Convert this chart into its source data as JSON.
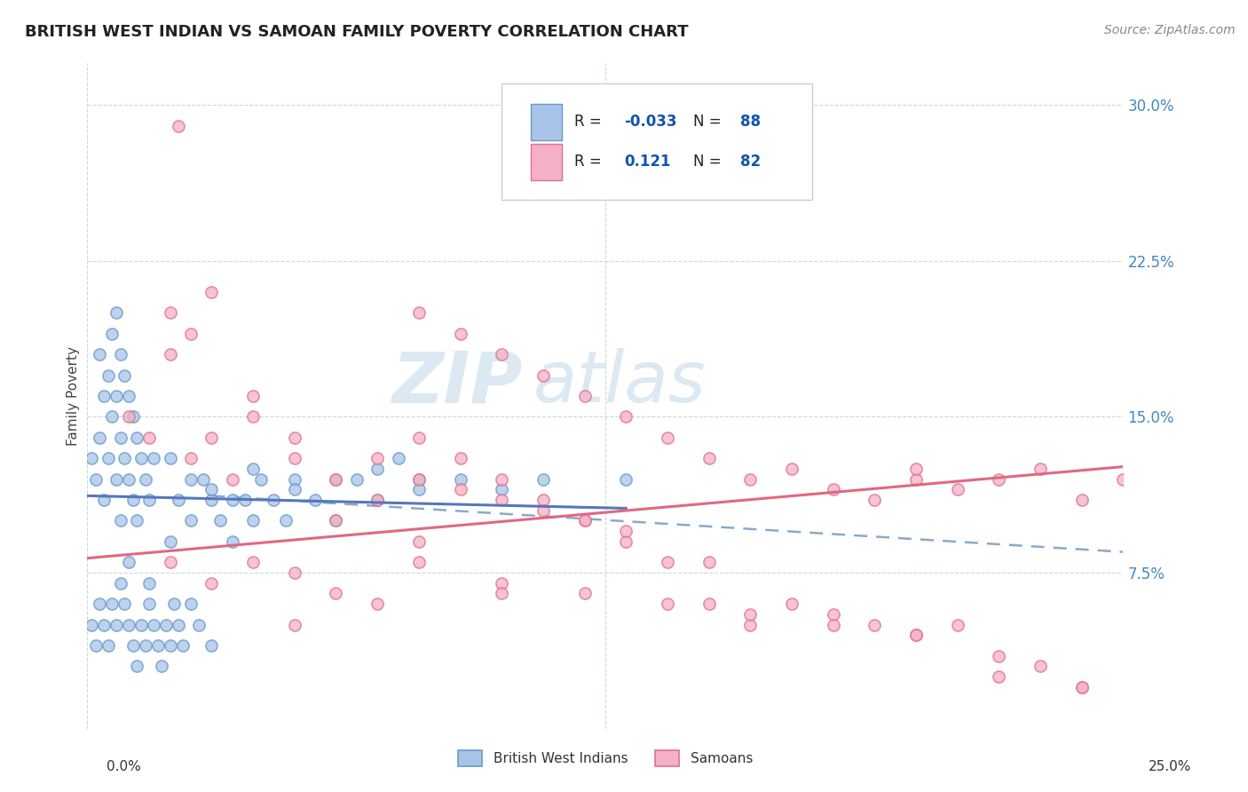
{
  "title": "BRITISH WEST INDIAN VS SAMOAN FAMILY POVERTY CORRELATION CHART",
  "source": "Source: ZipAtlas.com",
  "ylabel": "Family Poverty",
  "y_tick_values": [
    0.075,
    0.15,
    0.225,
    0.3
  ],
  "y_tick_labels": [
    "7.5%",
    "15.0%",
    "22.5%",
    "30.0%"
  ],
  "x_min": 0.0,
  "x_max": 0.25,
  "y_min": 0.0,
  "y_max": 0.32,
  "legend_label1": "British West Indians",
  "legend_label2": "Samoans",
  "r1": "-0.033",
  "n1": "88",
  "r2": "0.121",
  "n2": "82",
  "color_bwi_fill": "#a8c4e8",
  "color_bwi_edge": "#6699cc",
  "color_samoan_fill": "#f4b0c4",
  "color_samoan_edge": "#e07090",
  "color_bwi_line": "#5577bb",
  "color_samoan_line": "#e06880",
  "color_dashed": "#88aacc",
  "color_grid": "#c8d8e8",
  "color_ytick": "#4488bb",
  "color_title": "#222222",
  "color_source": "#888888",
  "color_legend_text": "#1155aa",
  "watermark_zip": "ZIP",
  "watermark_atlas": "atlas",
  "watermark_color": "#dce8f2",
  "title_fontsize": 13,
  "source_fontsize": 10,
  "ytick_fontsize": 12,
  "ylabel_fontsize": 11,
  "legend_fontsize": 11,
  "watermark_fontsize_zip": 58,
  "watermark_fontsize_atlas": 58
}
